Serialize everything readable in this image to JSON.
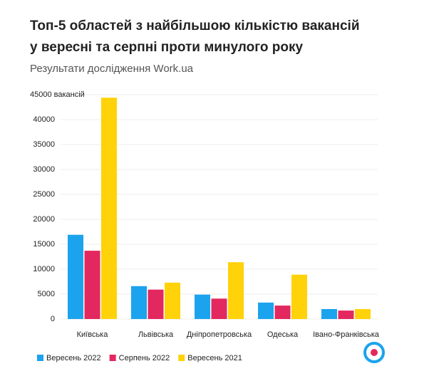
{
  "chart_data": {
    "type": "bar",
    "title": "Топ-5 областей з найбільшою кількістю вакансій",
    "title_line2": "у вересні та серпні проти минулого року",
    "subtitle": "Результати дослідження Work.ua",
    "categories": [
      "Київська",
      "Львівська",
      "Дніпропетровська",
      "Одеська",
      "Івано-Франківська"
    ],
    "series": [
      {
        "name": "Вересень 2022",
        "color": "#1ba3ee",
        "values": [
          16900,
          6600,
          4900,
          3300,
          2000
        ]
      },
      {
        "name": "Серпень 2022",
        "color": "#e3285f",
        "values": [
          13700,
          5900,
          4100,
          2700,
          1700
        ]
      },
      {
        "name": "Вересень 2021",
        "color": "#ffd20a",
        "values": [
          44400,
          7300,
          11400,
          8900,
          2000
        ]
      }
    ],
    "ylim": [
      0,
      45000
    ],
    "yticks": [
      0,
      5000,
      10000,
      15000,
      20000,
      25000,
      30000,
      35000,
      40000,
      {
        "value": 45000,
        "label": "45000 вакансій"
      }
    ],
    "grid": true
  }
}
